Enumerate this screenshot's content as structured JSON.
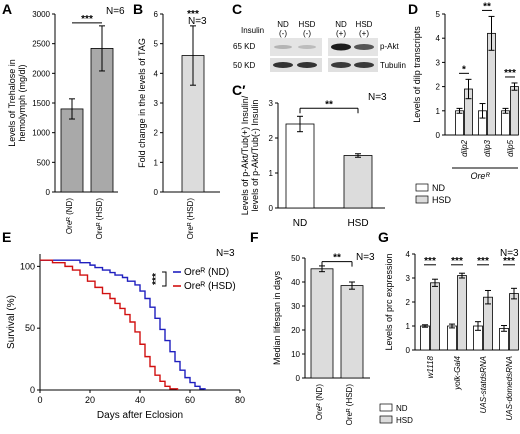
{
  "chart_data": [
    {
      "panel": "A",
      "type": "bar",
      "n": "N=6",
      "ylabel": [
        "Levels of Trehalose in",
        "hemolymph (mg/dl)"
      ],
      "yticks": [
        "0",
        "500",
        "1000",
        "1500",
        "2000",
        "2500",
        "3000"
      ],
      "ylim": [
        0,
        3000
      ],
      "categories": [
        "Oreᴿ (ND)",
        "Oreᴿ (HSD)"
      ],
      "values": [
        1400,
        2420
      ],
      "errors": [
        170,
        380
      ],
      "colors": [
        "#a9a9a9",
        "#a9a9a9"
      ],
      "sig": "***"
    },
    {
      "panel": "B",
      "type": "bar",
      "n": "N=3",
      "ylabel": [
        "Fold change in the levels of TAG"
      ],
      "yticks": [
        "0",
        "1",
        "2",
        "3",
        "4",
        "5",
        "6"
      ],
      "ylim": [
        0,
        6
      ],
      "categories": [
        "Oreᴿ (HSD)"
      ],
      "values": [
        4.6
      ],
      "errors": [
        1.0
      ],
      "colors": [
        "#dcdcdc"
      ],
      "sig": "***"
    },
    {
      "panel": "C",
      "type": "blot",
      "insulin_label": "Insulin",
      "lanes": [
        {
          "cond": "ND",
          "ins": "(-)"
        },
        {
          "cond": "HSD",
          "ins": "(-)"
        },
        {
          "cond": "ND",
          "ins": "(+)"
        },
        {
          "cond": "HSD",
          "ins": "(+)"
        }
      ],
      "mw": [
        "65 KD",
        "50 KD"
      ],
      "bands": [
        "p-Akt",
        "Tubulin"
      ]
    },
    {
      "panel": "C′",
      "type": "bar",
      "n": "N=3",
      "ylabel": [
        "Levels of p-Akt/Tub(+) Insulin/",
        "levels of p-Akt/Tub(-) Insulin"
      ],
      "yticks": [
        "0",
        "1",
        "2",
        "3"
      ],
      "ylim": [
        0,
        3
      ],
      "categories": [
        "ND",
        "HSD"
      ],
      "values": [
        2.4,
        1.5
      ],
      "errors": [
        0.22,
        0.05
      ],
      "colors": [
        "#ffffff",
        "#dcdcdc"
      ],
      "sig": "**"
    },
    {
      "panel": "D",
      "type": "bar",
      "n": "",
      "ylabel": [
        "Levels of dilp transcripts"
      ],
      "yticks": [
        "0",
        "1",
        "2",
        "3",
        "4",
        "5"
      ],
      "ylim": [
        0,
        5
      ],
      "categories": [
        "dilp2",
        "dilp3",
        "dilp5"
      ],
      "series": [
        {
          "name": "ND",
          "values": [
            1.0,
            1.0,
            1.0
          ],
          "errors": [
            0.1,
            0.3,
            0.1
          ],
          "color": "#ffffff"
        },
        {
          "name": "HSD",
          "values": [
            1.9,
            4.2,
            2.0
          ],
          "errors": [
            0.4,
            0.7,
            0.15
          ],
          "color": "#dcdcdc"
        }
      ],
      "sigs": [
        "*",
        "**",
        "***"
      ],
      "group_label": "Oreᴿ"
    },
    {
      "panel": "E",
      "type": "line",
      "n": "N=3",
      "xlabel": "Days after Eclosion",
      "ylabel": "Survival (%)",
      "xlim": [
        0,
        80
      ],
      "ylim": [
        0,
        110
      ],
      "xticks": [
        "0",
        "20",
        "40",
        "60",
        "80"
      ],
      "yticks": [
        "0",
        "50",
        "100"
      ],
      "series": [
        {
          "name": "Oreᴿ (ND)",
          "color": "#1f1fbf",
          "x": [
            0,
            12,
            16,
            20,
            22,
            25,
            28,
            30,
            33,
            35,
            38,
            40,
            42,
            44,
            46,
            48,
            50,
            52,
            54,
            56,
            58,
            60,
            62,
            64,
            66
          ],
          "y": [
            105,
            105,
            103,
            101,
            99,
            97,
            95,
            93,
            91,
            88,
            85,
            80,
            74,
            67,
            58,
            49,
            40,
            31,
            23,
            16,
            10,
            6,
            3,
            1,
            0
          ]
        },
        {
          "name": "Oreᴿ (HSD)",
          "color": "#d11010",
          "x": [
            0,
            5,
            10,
            13,
            16,
            19,
            22,
            25,
            28,
            30,
            32,
            34,
            36,
            38,
            40,
            42,
            44,
            46,
            48,
            50,
            52,
            55
          ],
          "y": [
            105,
            103,
            100,
            97,
            93,
            88,
            83,
            78,
            74,
            70,
            66,
            61,
            55,
            47,
            37,
            27,
            19,
            12,
            7,
            3,
            1,
            0
          ]
        }
      ],
      "sig": "***"
    },
    {
      "panel": "F",
      "type": "bar",
      "n": "N=3",
      "ylabel": [
        "Median lifespan in days"
      ],
      "yticks": [
        "0",
        "10",
        "20",
        "30",
        "40",
        "50"
      ],
      "ylim": [
        0,
        50
      ],
      "categories": [
        "Oreᴿ (ND)",
        "Oreᴿ (HSD)"
      ],
      "values": [
        45.5,
        38.5
      ],
      "errors": [
        1.2,
        1.5
      ],
      "colors": [
        "#dcdcdc",
        "#dcdcdc"
      ],
      "sig": "**"
    },
    {
      "panel": "G",
      "type": "bar",
      "n": "N=3",
      "ylabel": [
        "Levels of prc expression"
      ],
      "yticks": [
        "0",
        "1",
        "2",
        "3",
        "4"
      ],
      "ylim": [
        0,
        4
      ],
      "categories": [
        "w1118",
        "yolk-Gal4",
        "UAS-statdsRNA",
        "UAS-domedsRNA"
      ],
      "series": [
        {
          "name": "ND",
          "values": [
            1.0,
            1.0,
            1.0,
            0.9
          ],
          "errors": [
            0.05,
            0.08,
            0.18,
            0.12
          ],
          "color": "#ffffff"
        },
        {
          "name": "HSD",
          "values": [
            2.8,
            3.1,
            2.2,
            2.35
          ],
          "errors": [
            0.15,
            0.1,
            0.28,
            0.22
          ],
          "color": "#dcdcdc"
        }
      ],
      "sigs": [
        "***",
        "***",
        "***",
        "***"
      ]
    }
  ]
}
